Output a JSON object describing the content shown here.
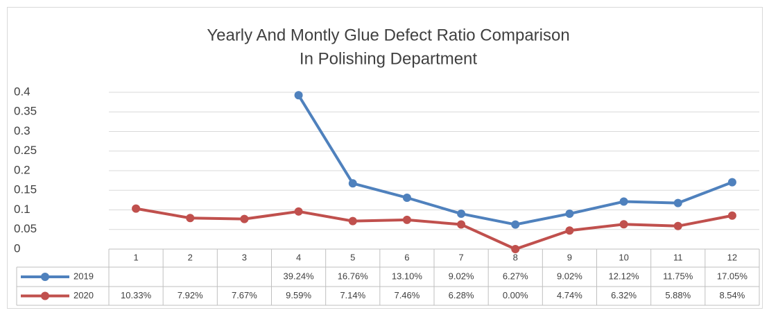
{
  "chart_data": {
    "type": "line",
    "title": [
      "Yearly And Montly Glue Defect Ratio Comparison",
      "In Polishing Department"
    ],
    "categories": [
      "1",
      "2",
      "3",
      "4",
      "5",
      "6",
      "7",
      "8",
      "9",
      "10",
      "11",
      "12"
    ],
    "series": [
      {
        "name": "2019",
        "color": "#4f81bd",
        "values": [
          null,
          null,
          null,
          0.3924,
          0.1676,
          0.131,
          0.0902,
          0.0627,
          0.0902,
          0.1212,
          0.1175,
          0.1705
        ],
        "value_labels": [
          null,
          null,
          null,
          "39.24%",
          "16.76%",
          "13.10%",
          "9.02%",
          "6.27%",
          "9.02%",
          "12.12%",
          "11.75%",
          "17.05%"
        ]
      },
      {
        "name": "2020",
        "color": "#c0504d",
        "values": [
          0.1033,
          0.0792,
          0.0767,
          0.0959,
          0.0714,
          0.0746,
          0.0628,
          0,
          0.0474,
          0.0632,
          0.0588,
          0.0854
        ],
        "value_labels": [
          "10.33%",
          "7.92%",
          "7.67%",
          "9.59%",
          "7.14%",
          "7.46%",
          "6.28%",
          "0.00%",
          "4.74%",
          "6.32%",
          "5.88%",
          "8.54%"
        ]
      }
    ],
    "ylim": [
      0,
      0.4
    ],
    "yticks": [
      0,
      0.05,
      0.1,
      0.15,
      0.2,
      0.25,
      0.3,
      0.35,
      0.4
    ],
    "grid": true
  }
}
